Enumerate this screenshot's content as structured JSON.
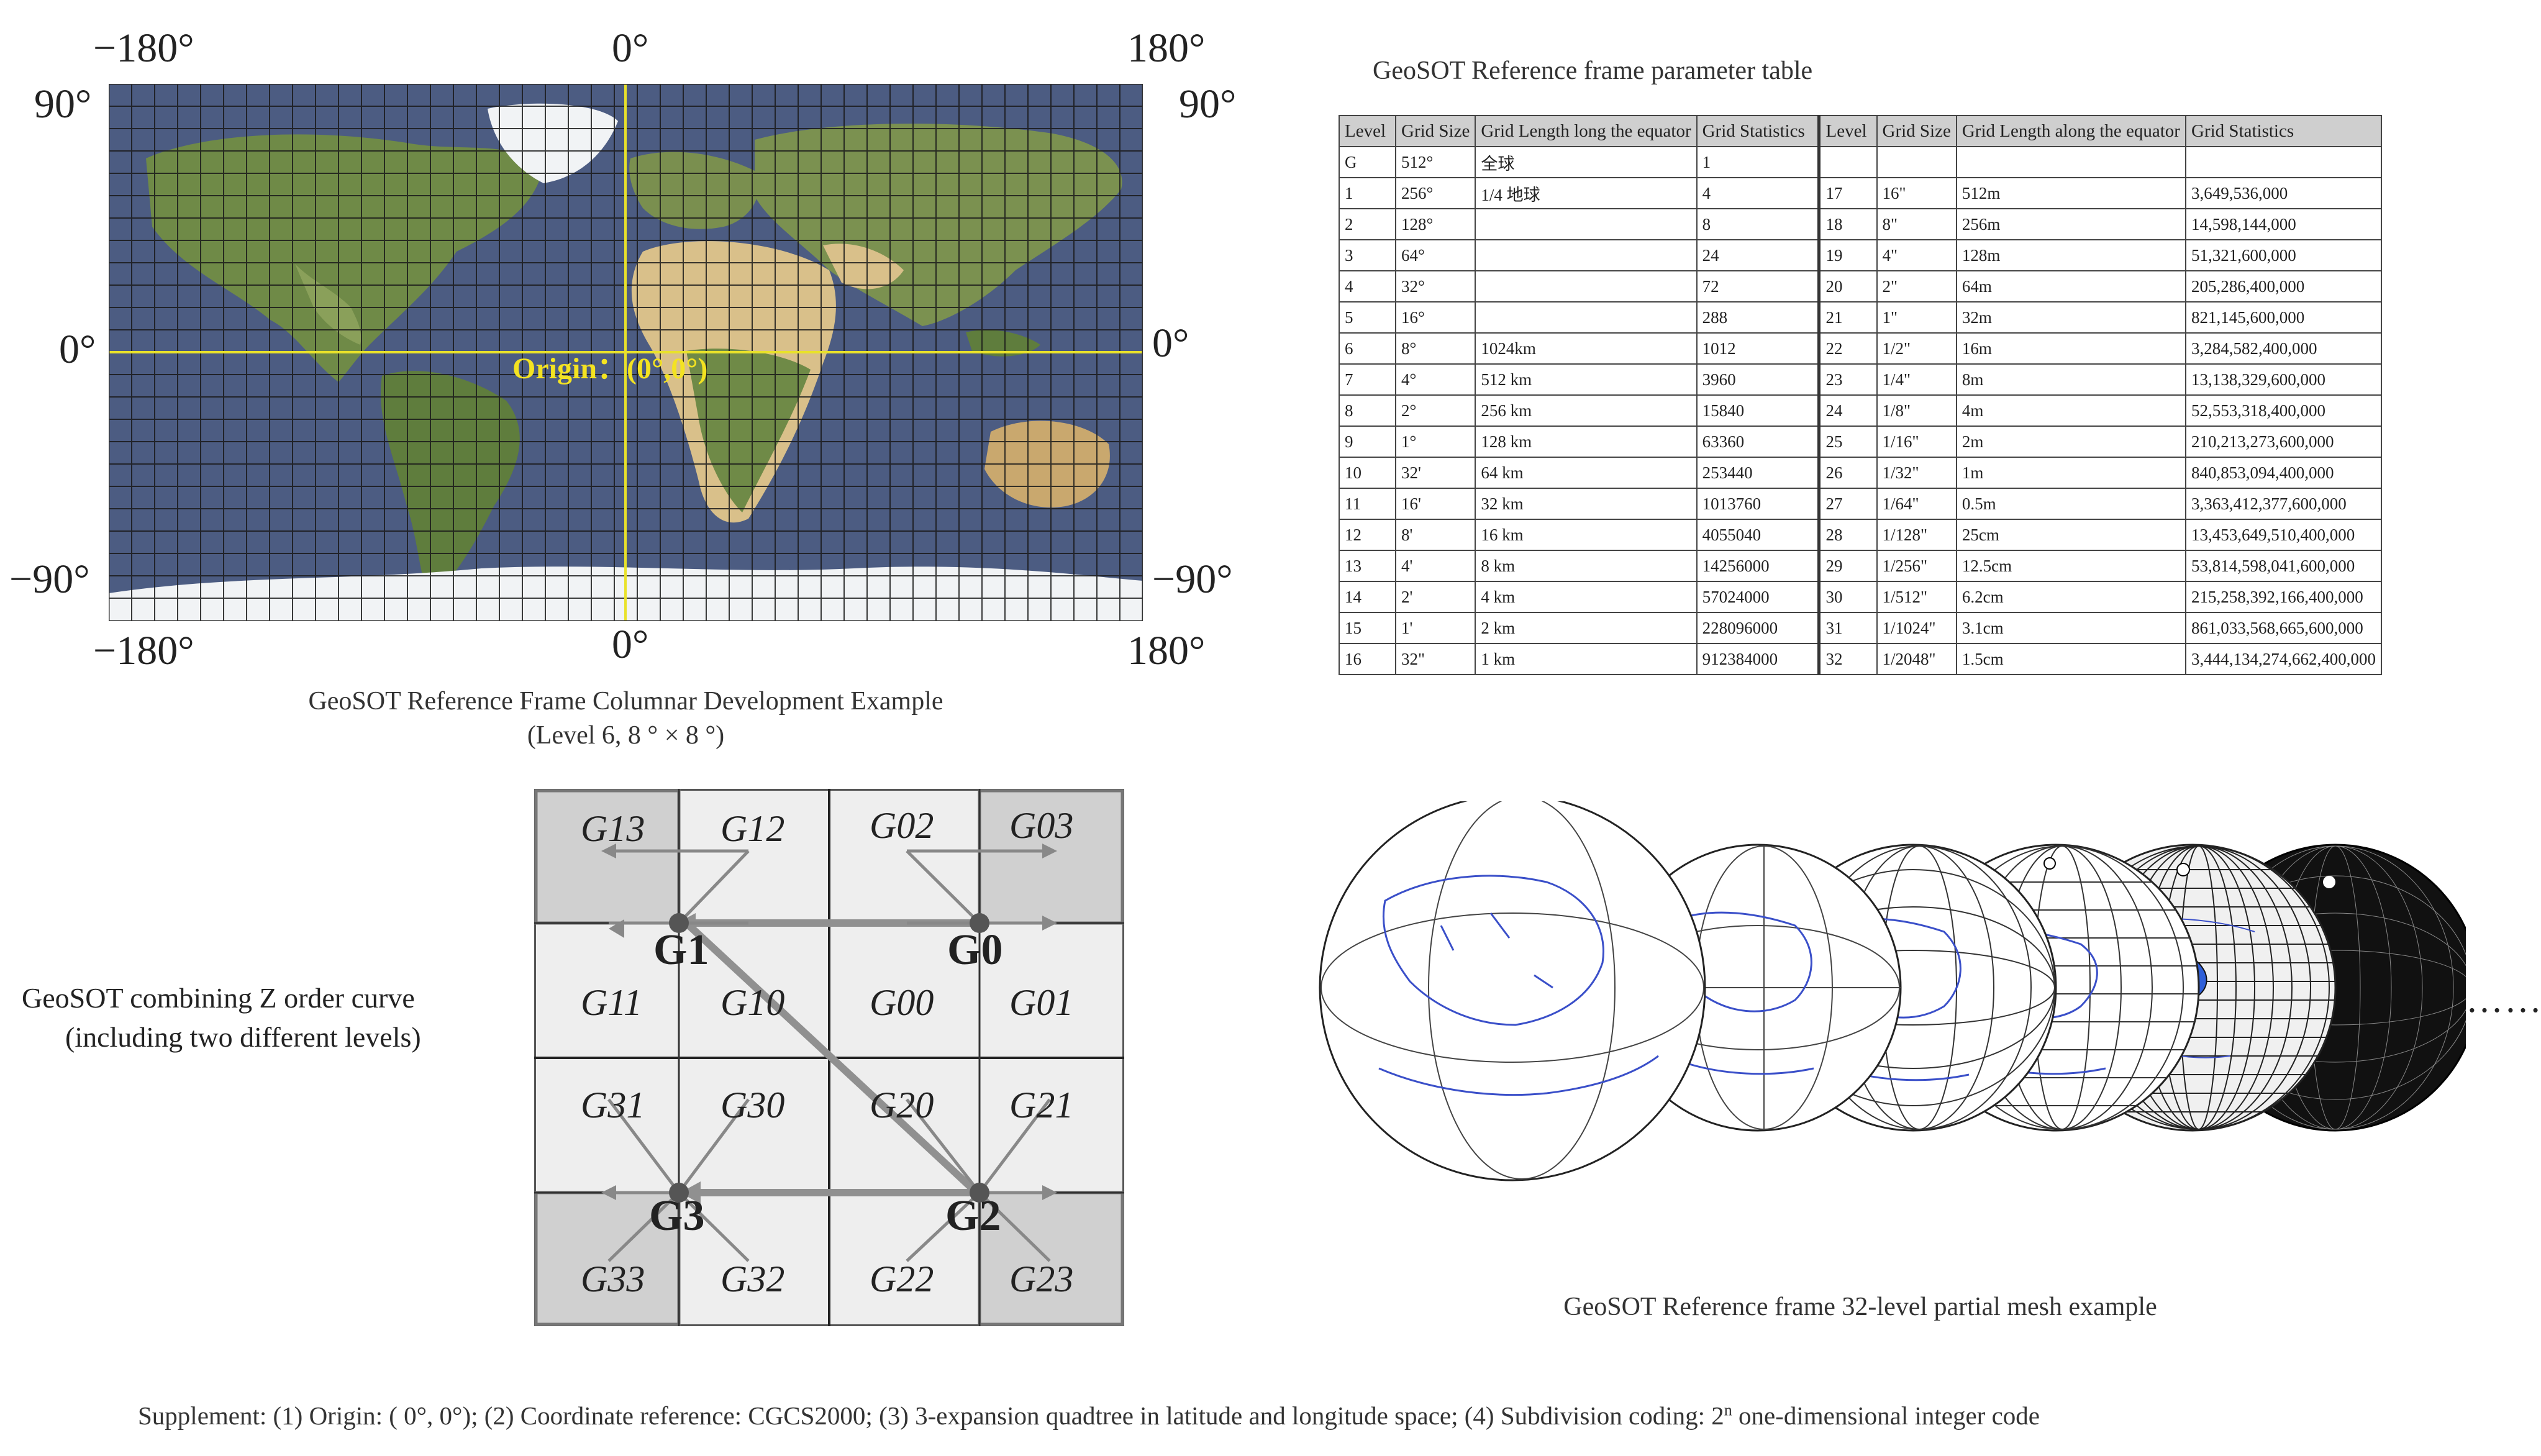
{
  "world_map": {
    "top_labels": [
      "−180°",
      "0°",
      "180°"
    ],
    "bottom_labels": [
      "−180°",
      "0°",
      "180°"
    ],
    "left_labels": [
      "90°",
      "0°",
      "−90°"
    ],
    "right_labels": [
      "90°",
      "0°",
      "−90°"
    ],
    "origin_label": "Origin：(0°,0°)",
    "caption_line1": "GeoSOT Reference Frame Columnar Development Example",
    "caption_line2": "(Level 6, 8 ° × 8 °)",
    "colors": {
      "ocean": "#4c5c82",
      "land": "#6f8a47",
      "desert": "#d9c08a",
      "ice": "#f1f3f5",
      "axis": "#e9e22a",
      "origin_text": "#f4e321"
    }
  },
  "param_table": {
    "title": "GeoSOT Reference frame parameter table",
    "headers": [
      "Level",
      "Grid Size",
      "Grid Length long the equator",
      "Grid Statistics",
      "Level",
      "Grid Size",
      "Grid Length along the equator",
      "Grid Statistics"
    ],
    "rows": [
      [
        "G",
        "512°",
        "全球",
        "1",
        "",
        "",
        "",
        ""
      ],
      [
        "1",
        "256°",
        "1/4 地球",
        "4",
        "17",
        "16\"",
        "512m",
        "3,649,536,000"
      ],
      [
        "2",
        "128°",
        "",
        "8",
        "18",
        "8\"",
        "256m",
        "14,598,144,000"
      ],
      [
        "3",
        "64°",
        "",
        "24",
        "19",
        "4\"",
        "128m",
        "51,321,600,000"
      ],
      [
        "4",
        "32°",
        "",
        "72",
        "20",
        "2\"",
        "64m",
        "205,286,400,000"
      ],
      [
        "5",
        "16°",
        "",
        "288",
        "21",
        "1\"",
        "32m",
        "821,145,600,000"
      ],
      [
        "6",
        "8°",
        "1024km",
        "1012",
        "22",
        "1/2\"",
        "16m",
        "3,284,582,400,000"
      ],
      [
        "7",
        "4°",
        "512 km",
        "3960",
        "23",
        "1/4\"",
        "8m",
        "13,138,329,600,000"
      ],
      [
        "8",
        "2°",
        "256 km",
        "15840",
        "24",
        "1/8\"",
        "4m",
        "52,553,318,400,000"
      ],
      [
        "9",
        "1°",
        "128 km",
        "63360",
        "25",
        "1/16\"",
        "2m",
        "210,213,273,600,000"
      ],
      [
        "10",
        "32'",
        "64 km",
        "253440",
        "26",
        "1/32\"",
        "1m",
        "840,853,094,400,000"
      ],
      [
        "11",
        "16'",
        "32 km",
        "1013760",
        "27",
        "1/64\"",
        "0.5m",
        "3,363,412,377,600,000"
      ],
      [
        "12",
        "8'",
        "16 km",
        "4055040",
        "28",
        "1/128\"",
        "25cm",
        "13,453,649,510,400,000"
      ],
      [
        "13",
        "4'",
        "8 km",
        "14256000",
        "29",
        "1/256\"",
        "12.5cm",
        "53,814,598,041,600,000"
      ],
      [
        "14",
        "2'",
        "4 km",
        "57024000",
        "30",
        "1/512\"",
        "6.2cm",
        "215,258,392,166,400,000"
      ],
      [
        "15",
        "1'",
        "2 km",
        "228096000",
        "31",
        "1/1024\"",
        "3.1cm",
        "861,033,568,665,600,000"
      ],
      [
        "16",
        "32\"",
        "1 km",
        "912384000",
        "32",
        "1/2048\"",
        "1.5cm",
        "3,444,134,274,662,400,000"
      ]
    ]
  },
  "z_curve": {
    "caption_line1": "GeoSOT combining Z order curve",
    "caption_line2": "(including two different levels)",
    "major_labels": [
      "G0",
      "G1",
      "G2",
      "G3"
    ],
    "minor_labels": [
      "G13",
      "G12",
      "G02",
      "G03",
      "G11",
      "G10",
      "G00",
      "G01",
      "G31",
      "G30",
      "G20",
      "G21",
      "G33",
      "G32",
      "G22",
      "G23"
    ],
    "colors": {
      "cell_light": "#eeeeee",
      "cell_dark": "#d0d0d0",
      "path": "#909090",
      "node": "#555555"
    }
  },
  "globes": {
    "caption": "GeoSOT Reference frame 32-level partial mesh example",
    "ellipsis": "……",
    "colors": {
      "coast": "#3a4fc9",
      "highlight": "#2f5fd8",
      "grid": "#333333"
    }
  },
  "supplement": {
    "text_before": "Supplement:   (1) Origin: ( 0°, 0°);  (2) Coordinate reference: CGCS2000;  (3) 3-expansion quadtree in latitude and longitude space;  (4) Subdivision coding: 2",
    "superscript": "n",
    "text_after": " one-dimensional integer code"
  }
}
